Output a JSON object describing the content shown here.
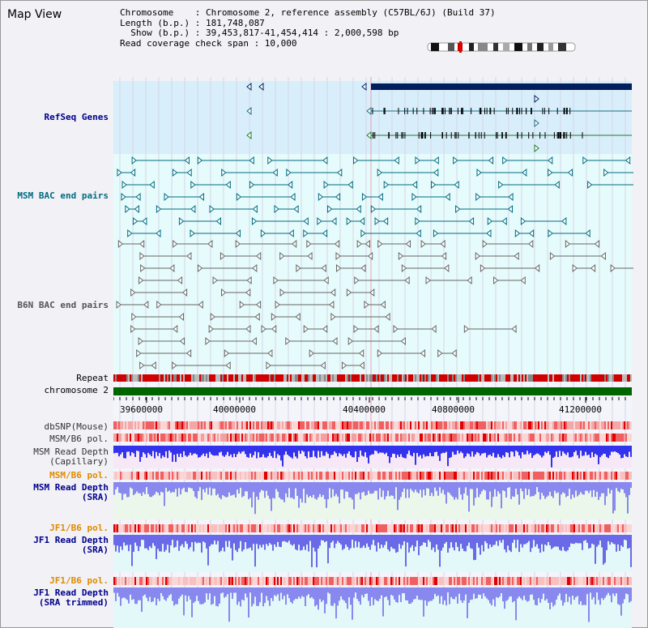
{
  "panel": {
    "title": "Map View"
  },
  "info": {
    "chromosome_line": "Chromosome    : Chromosome 2, reference assembly (C57BL/6J) (Build 37)",
    "length_line": "Length (b.p.) : 181,748,087",
    "show_line": "  Show (b.p.) : 39,453,817-41,454,414 : 2,000,598 bp",
    "coverage_line": "Read coverage check span : 10,000"
  },
  "track_labels": {
    "refseq": "RefSeq Genes",
    "msm_bac": "MSM BAC end pairs",
    "b6n_bac": "B6N BAC end pairs",
    "repeat": "Repeat",
    "chromosome": "chromosome 2",
    "dbsnp": "dbSNP(Mouse)",
    "msm_b6_pol_1": "MSM/B6 pol.",
    "msm_depth_cap": "MSM Read Depth\n(Capillary)",
    "msm_b6_pol_2": "MSM/B6 pol.",
    "msm_depth_sra": "MSM Read Depth\n(SRA)",
    "jf1_b6_pol_1": "JF1/B6 pol.",
    "jf1_depth_sra": "JF1 Read Depth\n(SRA)",
    "jf1_b6_pol_2": "JF1/B6 pol.",
    "jf1_depth_trim": "JF1 Read Depth\n(SRA trimmed)"
  },
  "axis": {
    "ticks": [
      "39600000",
      "40000000",
      "40400000",
      "40800000",
      "41200000"
    ]
  },
  "colors": {
    "refseq_bg": "#d8eefb",
    "bac_bg": "#e6fbfb",
    "gene_dark": "#001f5c",
    "teal_feature": "#006b80",
    "gray_feature": "#666666",
    "repeat_red": "#d00000",
    "chrom_green": "#006400",
    "snp_pink": "#f3a7a7",
    "depth_blue": "#3333ee",
    "depth_light": "#8888ee"
  }
}
